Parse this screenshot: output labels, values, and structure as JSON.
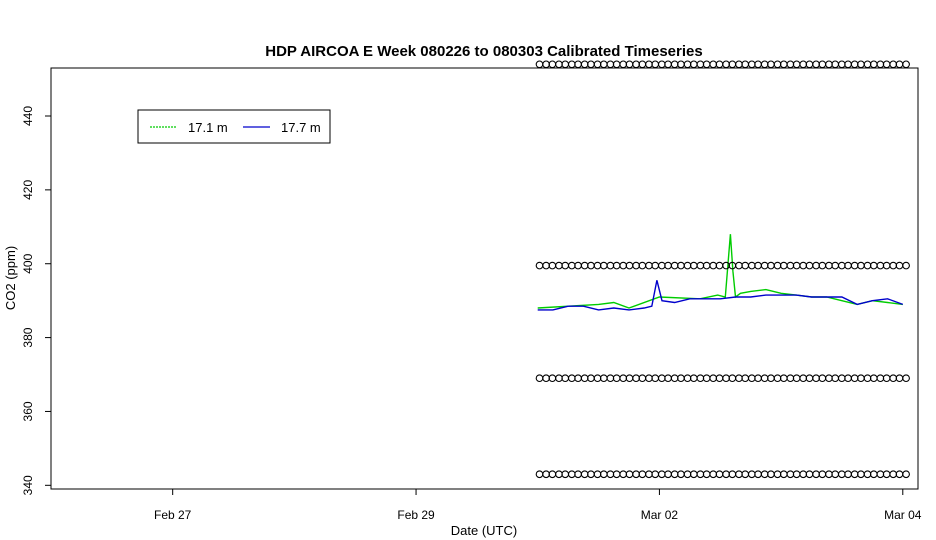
{
  "chart_data": {
    "type": "line",
    "title": "HDP AIRCOA E  Week 080226 to 080303  Calibrated Timeseries",
    "xlabel": "Date (UTC)",
    "ylabel": "CO2 (ppm)",
    "x_unit": "days",
    "xlim": [
      "2008-02-26 00:00",
      "2008-03-04 03:00"
    ],
    "ylim": [
      339,
      453
    ],
    "x_ticks": [
      {
        "label": "Feb 27",
        "date": "2008-02-27"
      },
      {
        "label": "Feb 29",
        "date": "2008-02-29"
      },
      {
        "label": "Mar 02",
        "date": "2008-03-02"
      },
      {
        "label": "Mar 04",
        "date": "2008-03-04"
      }
    ],
    "y_ticks": [
      340,
      360,
      380,
      400,
      420,
      440
    ],
    "grid": false,
    "legend": {
      "position": "top-left",
      "entries": [
        "17.1 m",
        "17.7 m"
      ]
    },
    "series": [
      {
        "name": "17.1 m",
        "color": "#00cc00",
        "x": [
          "2008-03-01 00:00",
          "2008-03-01 12:00",
          "2008-03-01 15:00",
          "2008-03-01 18:00",
          "2008-03-02 00:00",
          "2008-03-02 08:00",
          "2008-03-02 11:30",
          "2008-03-02 13:00",
          "2008-03-02 14:00",
          "2008-03-02 14:30",
          "2008-03-02 15:00",
          "2008-03-02 16:00",
          "2008-03-02 18:00",
          "2008-03-02 21:00",
          "2008-03-03 00:00",
          "2008-03-03 03:00",
          "2008-03-03 06:00",
          "2008-03-03 09:00",
          "2008-03-03 12:00",
          "2008-03-03 15:00",
          "2008-03-03 18:00",
          "2008-03-03 21:00",
          "2008-03-04 00:00"
        ],
        "y": [
          388,
          389,
          389.5,
          388,
          391,
          390.5,
          391.5,
          391,
          408,
          398,
          391,
          392,
          392.5,
          393,
          392,
          391.5,
          391,
          391,
          390,
          389,
          390,
          389.5,
          389
        ]
      },
      {
        "name": "17.7 m",
        "color": "#0000cc",
        "x": [
          "2008-03-01 00:00",
          "2008-03-01 03:00",
          "2008-03-01 06:00",
          "2008-03-01 09:00",
          "2008-03-01 12:00",
          "2008-03-01 15:00",
          "2008-03-01 18:00",
          "2008-03-01 21:00",
          "2008-03-01 22:30",
          "2008-03-01 23:30",
          "2008-03-02 00:30",
          "2008-03-02 03:00",
          "2008-03-02 06:00",
          "2008-03-02 09:00",
          "2008-03-02 12:00",
          "2008-03-02 15:00",
          "2008-03-02 18:00",
          "2008-03-02 21:00",
          "2008-03-03 00:00",
          "2008-03-03 03:00",
          "2008-03-03 06:00",
          "2008-03-03 09:00",
          "2008-03-03 12:00",
          "2008-03-03 15:00",
          "2008-03-03 18:00",
          "2008-03-03 21:00",
          "2008-03-04 00:00"
        ],
        "y": [
          387.5,
          387.5,
          388.5,
          388.5,
          387.5,
          388,
          387.5,
          388,
          388.5,
          395.5,
          390,
          389.5,
          390.5,
          390.5,
          390.5,
          391,
          391,
          391.5,
          391.5,
          391.5,
          391,
          391,
          391,
          389,
          390,
          390.5,
          389
        ]
      },
      {
        "name": "",
        "type": "points",
        "color": "#000000",
        "x_start": "2008-03-01 01:00",
        "x_end": "2008-03-04 00:00",
        "count": 29,
        "y": 454
      },
      {
        "name": "",
        "type": "points",
        "color": "#000000",
        "x_start": "2008-03-01 01:00",
        "x_end": "2008-03-04 00:00",
        "count": 29,
        "y": 399.5
      },
      {
        "name": "",
        "type": "points",
        "color": "#000000",
        "x_start": "2008-03-01 01:00",
        "x_end": "2008-03-04 00:00",
        "count": 29,
        "y": 369
      },
      {
        "name": "",
        "type": "points",
        "color": "#000000",
        "x_start": "2008-03-01 01:00",
        "x_end": "2008-03-04 00:00",
        "count": 29,
        "y": 343
      }
    ]
  }
}
